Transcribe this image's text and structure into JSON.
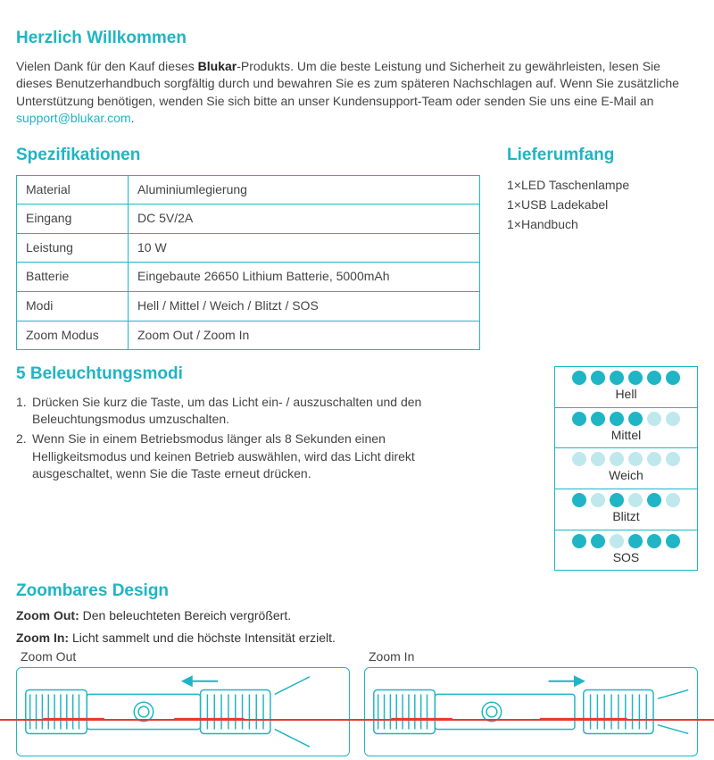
{
  "colors": {
    "teal": "#1fb5c4",
    "teal_light": "#a8e0e6",
    "red": "#e53935",
    "text": "#444444",
    "border": "#1fb5c4"
  },
  "welcome": {
    "heading": "Herzlich Willkommen",
    "text_pre": "Vielen Dank für den Kauf dieses ",
    "brand": "Blukar",
    "text_mid": "-Produkts. Um die beste Leistung und Sicherheit zu gewährleisten, lesen Sie dieses Benutzerhandbuch sorgfältig durch und bewahren Sie es zum späteren Nachschlagen auf. Wenn Sie zusätzliche Unterstützung benötigen, wenden Sie sich bitte an unser Kundensupport-Team oder senden Sie uns eine E-Mail an ",
    "email": "support@blukar.com",
    "text_post": "."
  },
  "specs": {
    "heading": "Spezifikationen",
    "rows": [
      {
        "k": "Material",
        "v": "Aluminiumlegierung"
      },
      {
        "k": "Eingang",
        "v": "DC 5V/2A"
      },
      {
        "k": "Leistung",
        "v": "10 W"
      },
      {
        "k": "Batterie",
        "v": "Eingebaute 26650 Lithium Batterie, 5000mAh"
      },
      {
        "k": "Modi",
        "v": "Hell / Mittel / Weich / Blitzt / SOS"
      },
      {
        "k": "Zoom Modus",
        "v": "Zoom Out / Zoom In"
      }
    ]
  },
  "liefer": {
    "heading": "Lieferumfang",
    "items": [
      "1×LED Taschenlampe",
      "1×USB Ladekabel",
      "1×Handbuch"
    ]
  },
  "modi": {
    "heading": "5 Beleuchtungsmodi",
    "items": [
      {
        "n": "1.",
        "t": "Drücken Sie kurz die Taste, um das Licht ein- / auszuschalten und den Beleuchtungsmodus umzuschalten."
      },
      {
        "n": "2.",
        "t": "Wenn Sie in einem Betriebsmodus länger als 8 Sekunden einen Helligkeitsmodus und keinen Betrieb auswählen, wird das Licht direkt ausgeschaltet, wenn Sie die Taste erneut drücken."
      }
    ]
  },
  "mode_vis": {
    "full": "#1fb5c4",
    "dim": "#bfe8ec",
    "modes": [
      {
        "label": "Hell",
        "dots": [
          1,
          1,
          1,
          1,
          1,
          1
        ]
      },
      {
        "label": "Mittel",
        "dots": [
          1,
          1,
          1,
          1,
          0,
          0
        ]
      },
      {
        "label": "Weich",
        "dots": [
          0,
          0,
          0,
          0,
          0,
          0
        ]
      },
      {
        "label": "Blitzt",
        "dots": [
          1,
          0,
          1,
          0,
          1,
          0
        ]
      },
      {
        "label": "SOS",
        "dots": [
          1,
          1,
          0,
          1,
          1,
          1
        ]
      }
    ]
  },
  "zoom": {
    "heading": "Zoombares Design",
    "out_label": "Zoom Out:",
    "out_text": " Den beleuchteten Bereich vergrößert.",
    "in_label": "Zoom In:",
    "in_text": " Licht sammelt und die höchste Intensität erzielt.",
    "box_out": "Zoom Out",
    "box_in": "Zoom In"
  }
}
